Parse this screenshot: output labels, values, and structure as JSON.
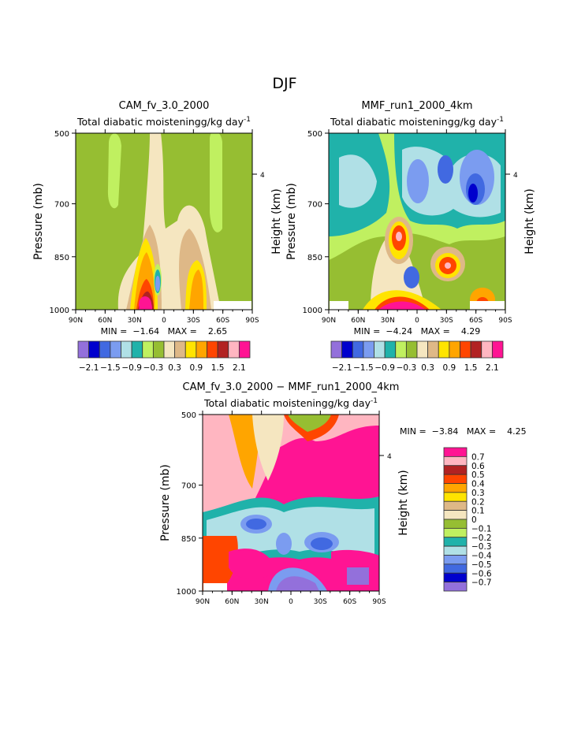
{
  "chart_data": {
    "type": "heatmap",
    "title": "DJF",
    "panels": [
      {
        "title": "CAM_fv_3.0_2000",
        "subtitle": "Total diabatic moistening",
        "units": "g/kg day",
        "units_exp": "-1",
        "ylabel": "Pressure (mb)",
        "right_label": "Height (km)",
        "right_tick": "4",
        "xticks": [
          "90N",
          "60N",
          "30N",
          "0",
          "30S",
          "60S",
          "90S"
        ],
        "yticks": [
          500,
          700,
          850,
          1000
        ],
        "ylim": [
          500,
          1000
        ],
        "min_label": "MIN =",
        "min": "-1.64",
        "max_label": "MAX =",
        "max": "2.65",
        "colorbar_labels": [
          "−2.1",
          "−1.5",
          "−0.9",
          "−0.3",
          "0.3",
          "0.9",
          "1.5",
          "2.1"
        ]
      },
      {
        "title": "MMF_run1_2000_4km",
        "subtitle": "Total diabatic moistening",
        "units": "g/kg day",
        "units_exp": "-1",
        "ylabel": "Pressure (mb)",
        "right_label": "Height (km)",
        "right_tick": "4",
        "xticks": [
          "90N",
          "60N",
          "30N",
          "0",
          "30S",
          "60S",
          "90S"
        ],
        "yticks": [
          500,
          700,
          850,
          1000
        ],
        "ylim": [
          500,
          1000
        ],
        "min_label": "MIN =",
        "min": "-4.24",
        "max_label": "MAX =",
        "max": "4.29",
        "colorbar_labels": [
          "−2.1",
          "−1.5",
          "−0.9",
          "−0.3",
          "0.3",
          "0.9",
          "1.5",
          "2.1"
        ]
      },
      {
        "title": "CAM_fv_3.0_2000 − MMF_run1_2000_4km",
        "subtitle": "Total diabatic moistening",
        "units": "g/kg day",
        "units_exp": "-1",
        "ylabel": "Pressure (mb)",
        "right_label": "Height (km)",
        "right_tick": "4",
        "xticks": [
          "90N",
          "60N",
          "30N",
          "0",
          "30S",
          "60S",
          "90S"
        ],
        "yticks": [
          500,
          700,
          850,
          1000
        ],
        "ylim": [
          500,
          1000
        ],
        "min_label": "MIN =",
        "min": "-3.84",
        "max_label": "MAX =",
        "max": "4.25",
        "colorbar_labels": [
          "0.7",
          "0.6",
          "0.5",
          "0.4",
          "0.3",
          "0.2",
          "0.1",
          "0",
          "−0.1",
          "−0.2",
          "−0.3",
          "−0.4",
          "−0.5",
          "−0.6",
          "−0.7"
        ]
      }
    ],
    "colors": [
      "#9370DB",
      "#0000CD",
      "#4169E1",
      "#7B9CF0",
      "#B0E0E6",
      "#20B2AA",
      "#C0F060",
      "#96BE32",
      "#F5E6C0",
      "#DEB887",
      "#FFE400",
      "#FFA500",
      "#FF4500",
      "#B22222",
      "#FFB6C1",
      "#FF1493"
    ]
  }
}
